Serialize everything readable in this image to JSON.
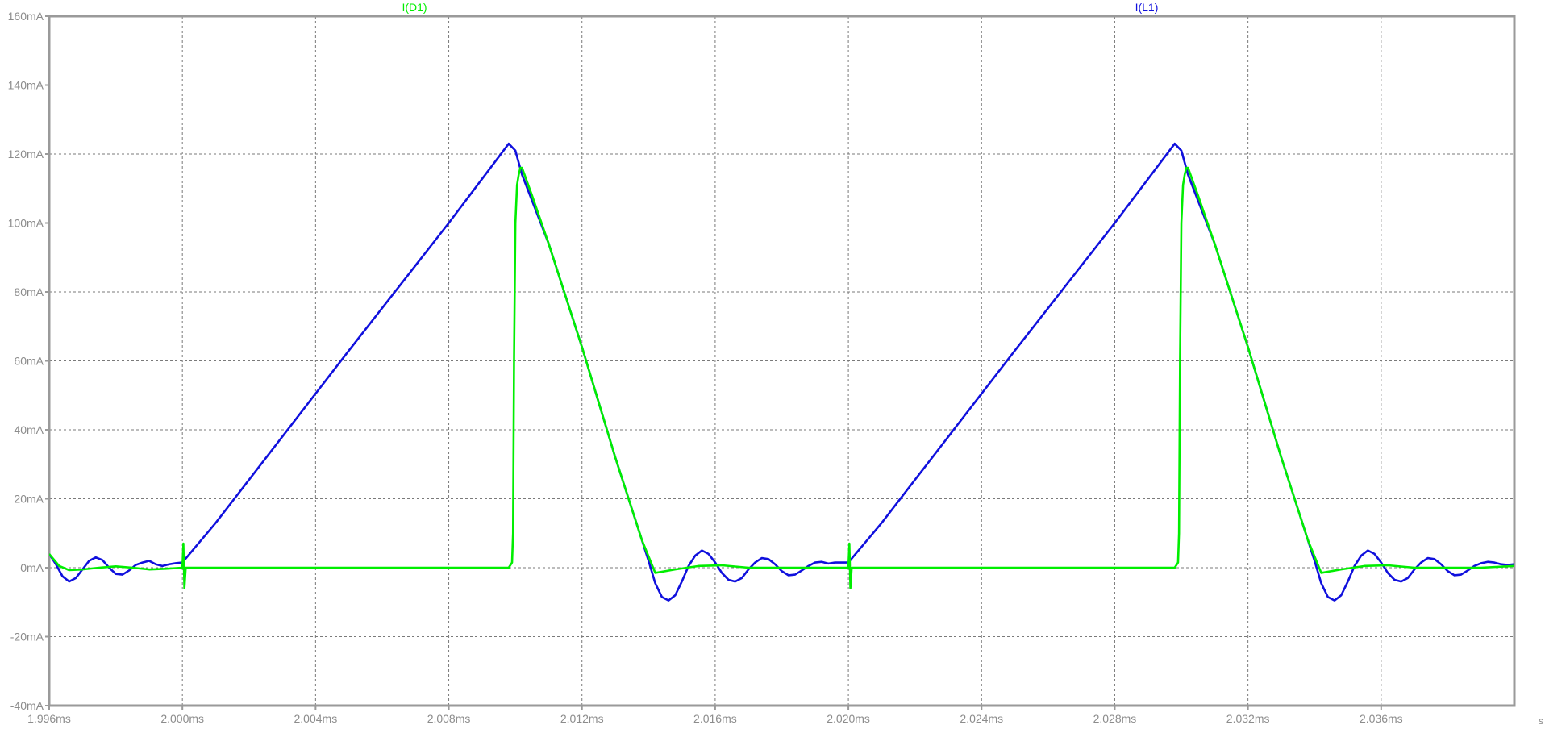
{
  "chart_data": {
    "type": "line",
    "title": "",
    "xlabel": "",
    "ylabel": "",
    "grid": true,
    "legend_placement": "top",
    "axis_end_label": "s",
    "xlim": [
      1.996,
      2.04
    ],
    "ylim": [
      -40,
      160
    ],
    "x_unit": "ms",
    "y_unit": "mA",
    "x_ticks": [
      1.996,
      2.0,
      2.004,
      2.008,
      2.012,
      2.016,
      2.02,
      2.024,
      2.028,
      2.032,
      2.036
    ],
    "x_tick_labels": [
      "1.996ms",
      "2.000ms",
      "2.004ms",
      "2.008ms",
      "2.012ms",
      "2.016ms",
      "2.020ms",
      "2.024ms",
      "2.028ms",
      "2.032ms",
      "2.036ms"
    ],
    "y_ticks": [
      -40,
      -20,
      0,
      20,
      40,
      60,
      80,
      100,
      120,
      140,
      160
    ],
    "y_tick_labels": [
      "-40mA",
      "-20mA",
      "0mA",
      "20mA",
      "40mA",
      "60mA",
      "80mA",
      "100mA",
      "120mA",
      "140mA",
      "160mA"
    ],
    "series": [
      {
        "name": "I(D1)",
        "color": "#00ee00",
        "x": [
          1.996,
          1.9963,
          1.9966,
          1.997,
          1.9975,
          1.998,
          1.9985,
          1.999,
          1.9995,
          2.0,
          2.00003,
          2.00006,
          2.0001,
          2.0005,
          2.005,
          2.0098,
          2.0099,
          2.00993,
          2.00996,
          2.01,
          2.01005,
          2.0101,
          2.01015,
          2.0102,
          2.0105,
          2.011,
          2.012,
          2.013,
          2.0138,
          2.0142,
          2.0148,
          2.0155,
          2.0162,
          2.017,
          2.018,
          2.019,
          2.02,
          2.02003,
          2.02006,
          2.0201,
          2.0205,
          2.025,
          2.0298,
          2.0299,
          2.02993,
          2.02996,
          2.03,
          2.03005,
          2.0301,
          2.03015,
          2.0302,
          2.0305,
          2.031,
          2.032,
          2.033,
          2.0338,
          2.0342,
          2.0348,
          2.0355,
          2.0362,
          2.037,
          2.038,
          2.039,
          2.04
        ],
        "y": [
          4,
          0.5,
          -0.7,
          -0.5,
          0,
          0.4,
          0,
          -0.5,
          -0.3,
          0,
          7,
          -6,
          0,
          0,
          0,
          0,
          1.5,
          10,
          60,
          100,
          111,
          114,
          116,
          116,
          108,
          94,
          64,
          32,
          8,
          -1.5,
          -0.5,
          0.5,
          0.7,
          0,
          0,
          0,
          0,
          7,
          -6,
          0,
          0,
          0,
          0,
          1.5,
          10,
          60,
          100,
          111,
          114,
          116,
          116,
          108,
          94,
          64,
          32,
          8,
          -1.5,
          -0.5,
          0.5,
          0.7,
          0,
          0,
          0,
          0.5
        ]
      },
      {
        "name": "I(L1)",
        "color": "#1010dd",
        "x": [
          1.996,
          1.9962,
          1.9964,
          1.9966,
          1.9968,
          1.997,
          1.9972,
          1.9974,
          1.9976,
          1.9978,
          1.998,
          1.9982,
          1.9984,
          1.9986,
          1.9988,
          1.999,
          1.9992,
          1.9994,
          1.9996,
          1.9998,
          2.0,
          2.001,
          2.005,
          2.008,
          2.0098,
          2.01,
          2.0102,
          2.011,
          2.012,
          2.013,
          2.014,
          2.0142,
          2.0144,
          2.0146,
          2.0148,
          2.015,
          2.0152,
          2.0154,
          2.0156,
          2.0158,
          2.016,
          2.0162,
          2.0164,
          2.0166,
          2.0168,
          2.017,
          2.0172,
          2.0174,
          2.0176,
          2.0178,
          2.018,
          2.0182,
          2.0184,
          2.0186,
          2.0188,
          2.019,
          2.0192,
          2.0194,
          2.0196,
          2.0198,
          2.02,
          2.021,
          2.025,
          2.028,
          2.0298,
          2.03,
          2.0302,
          2.031,
          2.032,
          2.033,
          2.034,
          2.0342,
          2.0344,
          2.0346,
          2.0348,
          2.035,
          2.0352,
          2.0354,
          2.0356,
          2.0358,
          2.036,
          2.0362,
          2.0364,
          2.0366,
          2.0368,
          2.037,
          2.0372,
          2.0374,
          2.0376,
          2.0378,
          2.038,
          2.0382,
          2.0384,
          2.0386,
          2.0388,
          2.039,
          2.0392,
          2.0394,
          2.0396,
          2.0398,
          2.04
        ],
        "y": [
          4,
          1,
          -2.5,
          -4,
          -3,
          -0.5,
          2,
          3,
          2.2,
          0,
          -1.8,
          -2,
          -0.8,
          0.8,
          1.5,
          2,
          1,
          0.5,
          1,
          1.3,
          1.5,
          13,
          63,
          100,
          123,
          121,
          114,
          94,
          64,
          32,
          2,
          -4.5,
          -8.5,
          -9.5,
          -8,
          -4,
          0.5,
          3.5,
          5,
          4,
          1.5,
          -1.5,
          -3.5,
          -4,
          -3,
          -0.5,
          1.5,
          2.8,
          2.5,
          1,
          -1,
          -2.2,
          -2,
          -0.8,
          0.5,
          1.5,
          1.7,
          1.2,
          1.5,
          1.5,
          1.5,
          13,
          63,
          100,
          123,
          121,
          114,
          94,
          64,
          32,
          2,
          -4.5,
          -8.5,
          -9.5,
          -8,
          -4,
          0.5,
          3.5,
          5,
          4,
          1.5,
          -1.5,
          -3.5,
          -4,
          -3,
          -0.5,
          1.5,
          2.8,
          2.5,
          1,
          -1,
          -2.2,
          -2,
          -0.8,
          0.5,
          1.3,
          1.7,
          1.5,
          1.0,
          0.8,
          1.0
        ]
      }
    ]
  }
}
